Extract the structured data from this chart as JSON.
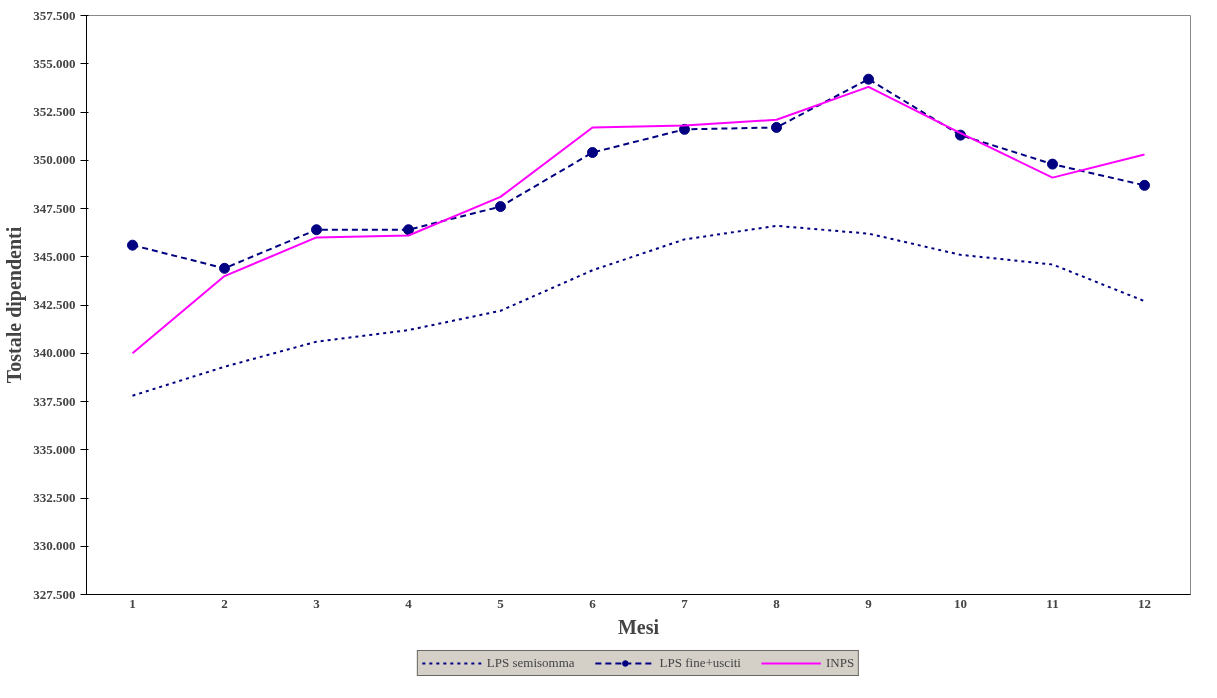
{
  "chart_data": {
    "type": "line",
    "xlabel": "Mesi",
    "ylabel": "Tostale dipendenti",
    "categories": [
      "1",
      "2",
      "3",
      "4",
      "5",
      "6",
      "7",
      "8",
      "9",
      "10",
      "11",
      "12"
    ],
    "series": [
      {
        "name": "LPS semisomma",
        "color": "#000080",
        "line_style": "dotted",
        "marker": "none",
        "values": [
          337800,
          339300,
          340600,
          341200,
          342200,
          344300,
          345900,
          346600,
          346200,
          345100,
          344600,
          342700
        ]
      },
      {
        "name": "LPS fine+usciti",
        "color": "#000080",
        "line_style": "dashed",
        "marker": "circle",
        "values": [
          345600,
          344400,
          346400,
          346400,
          347600,
          350400,
          351600,
          351700,
          354200,
          351300,
          349800,
          348700
        ]
      },
      {
        "name": "INPS",
        "color": "#ff00ff",
        "line_style": "solid",
        "marker": "none",
        "values": [
          340000,
          344000,
          346000,
          346100,
          348100,
          351700,
          351800,
          352100,
          353800,
          351400,
          349100,
          350300
        ]
      }
    ],
    "ylim": [
      327500,
      357500
    ],
    "yticks": [
      {
        "value": 327500,
        "label": "327.500"
      },
      {
        "value": 330000,
        "label": "330.000"
      },
      {
        "value": 332500,
        "label": "332.500"
      },
      {
        "value": 335000,
        "label": "335.000"
      },
      {
        "value": 337500,
        "label": "337.500"
      },
      {
        "value": 340000,
        "label": "340.000"
      },
      {
        "value": 342500,
        "label": "342.500"
      },
      {
        "value": 345000,
        "label": "345.000"
      },
      {
        "value": 347500,
        "label": "347.500"
      },
      {
        "value": 350000,
        "label": "350.000"
      },
      {
        "value": 352500,
        "label": "352.500"
      },
      {
        "value": 355000,
        "label": "355.000"
      },
      {
        "value": 357500,
        "label": "357.500"
      }
    ],
    "grid": false,
    "legend": "bottom"
  }
}
